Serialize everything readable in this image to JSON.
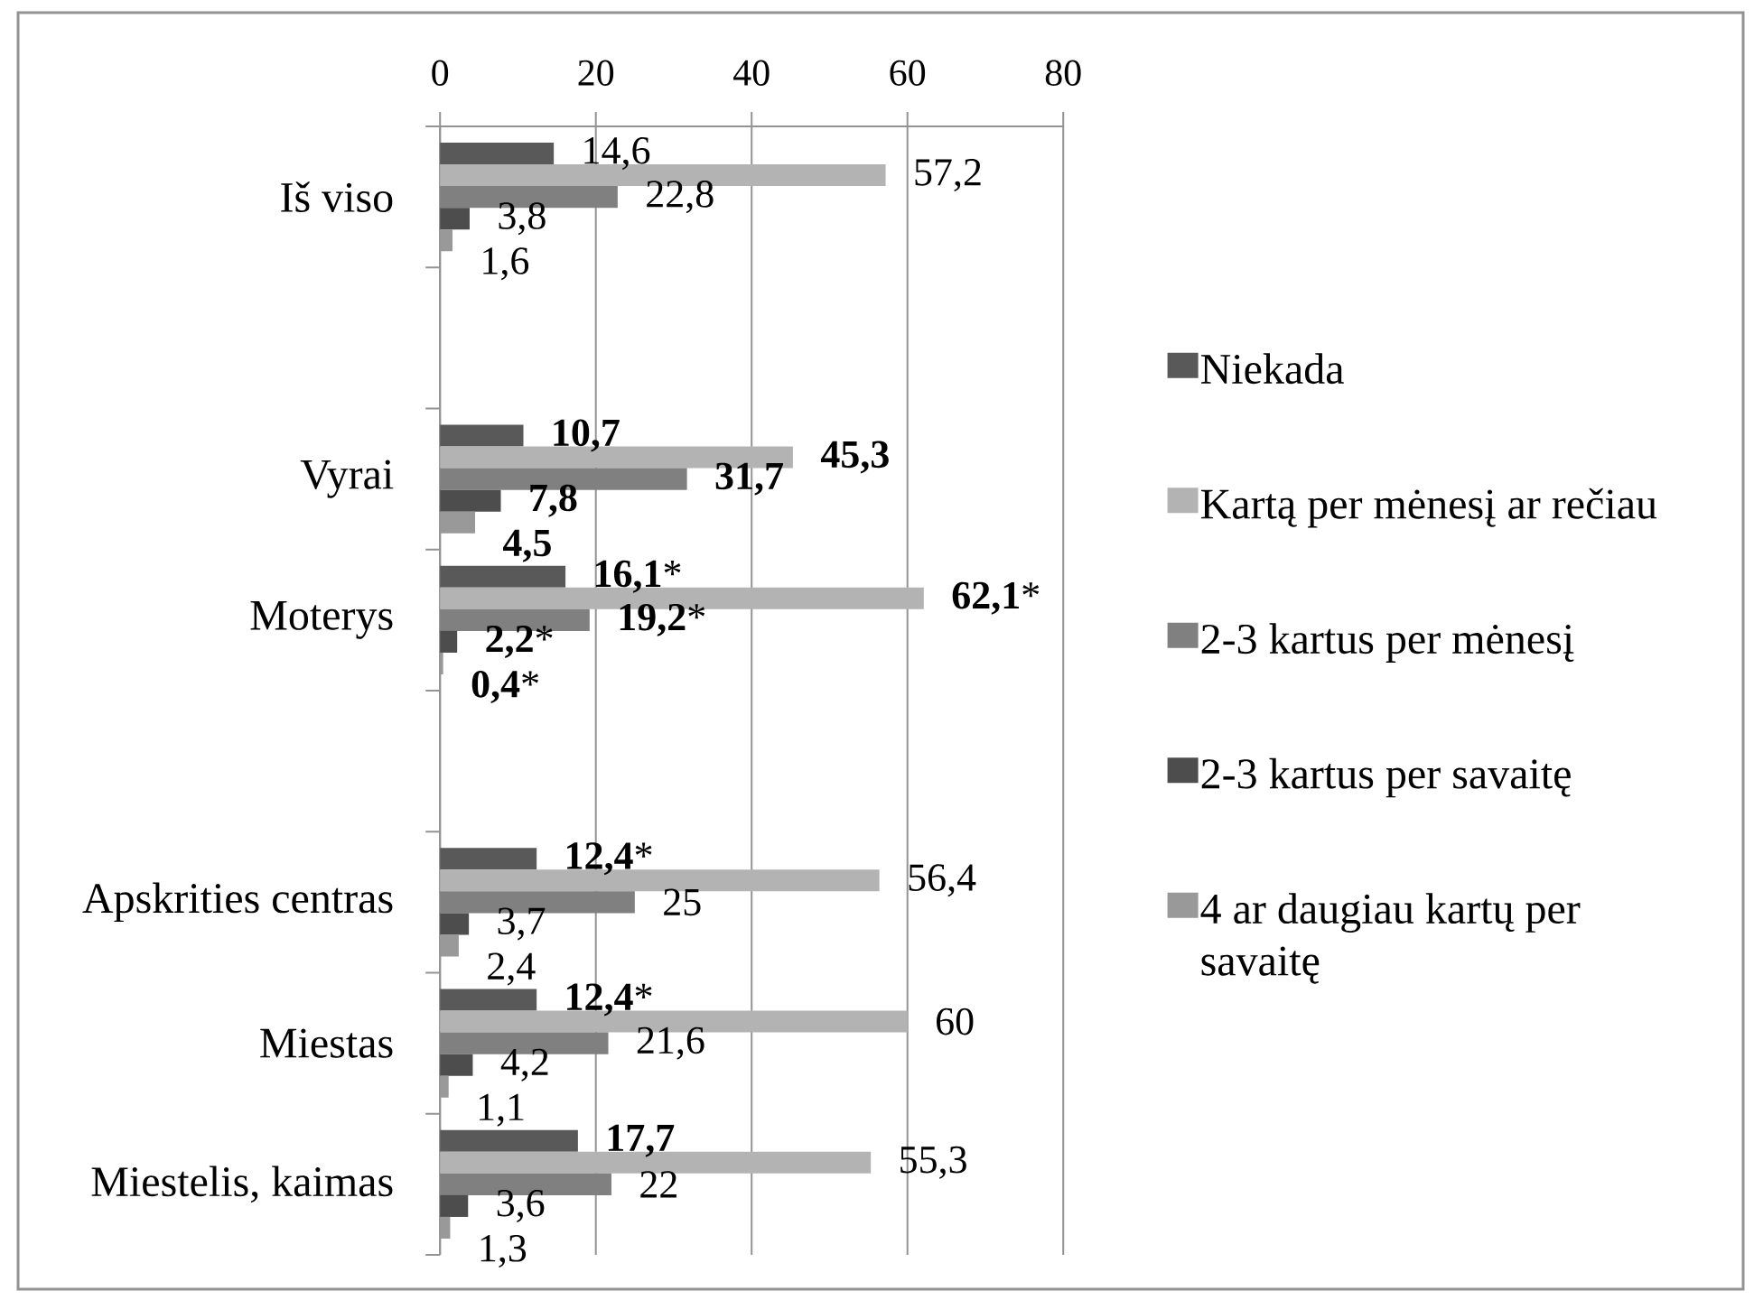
{
  "chart_data": {
    "type": "bar",
    "orientation": "horizontal",
    "categories": [
      "Iš viso",
      null,
      "Vyrai",
      "Moterys",
      null,
      "Apskrities centras",
      "Miestas",
      "Miestelis, kaimas"
    ],
    "series": [
      {
        "name": "Niekada",
        "color": "#595959",
        "values": [
          14.6,
          null,
          10.7,
          16.1,
          null,
          12.4,
          12.4,
          17.7
        ],
        "value_labels": [
          "14,6",
          null,
          "**10,7**",
          "**16,1***",
          null,
          "**12,4***",
          "**12,4***",
          "**17,7**"
        ]
      },
      {
        "name": "Kartą per mėnesį ar rečiau",
        "color": "#b3b3b3",
        "values": [
          57.2,
          null,
          45.3,
          62.1,
          null,
          56.4,
          60,
          55.3
        ],
        "value_labels": [
          "57,2",
          null,
          "**45,3**",
          "**62,1***",
          null,
          "56,4",
          "60",
          "55,3"
        ]
      },
      {
        "name": "2-3 kartus per mėnesį",
        "color": "#808080",
        "values": [
          22.8,
          null,
          31.7,
          19.2,
          null,
          25,
          21.6,
          22
        ],
        "value_labels": [
          "22,8",
          null,
          "**31,7**",
          "**19,2***",
          null,
          "25",
          "21,6",
          "22"
        ]
      },
      {
        "name": "2-3 kartus per savaitę",
        "color": "#4d4d4d",
        "values": [
          3.8,
          null,
          7.8,
          2.2,
          null,
          3.7,
          4.2,
          3.6
        ],
        "value_labels": [
          "3,8",
          null,
          "**7,8**",
          "**2,2***",
          null,
          "3,7",
          "4,2",
          "3,6"
        ]
      },
      {
        "name": "4 ar daugiau kartų per savaitę",
        "color": "#999999",
        "values": [
          1.6,
          null,
          4.5,
          0.4,
          null,
          2.4,
          1.1,
          1.3
        ],
        "value_labels": [
          "1,6",
          null,
          "**4,5**",
          "**0,4***",
          null,
          "2,4",
          "1,1",
          "1,3"
        ]
      }
    ],
    "xlim": [
      0,
      80
    ],
    "xticks": [
      0,
      20,
      40,
      60,
      80
    ],
    "grid": "x",
    "legend": "right"
  }
}
